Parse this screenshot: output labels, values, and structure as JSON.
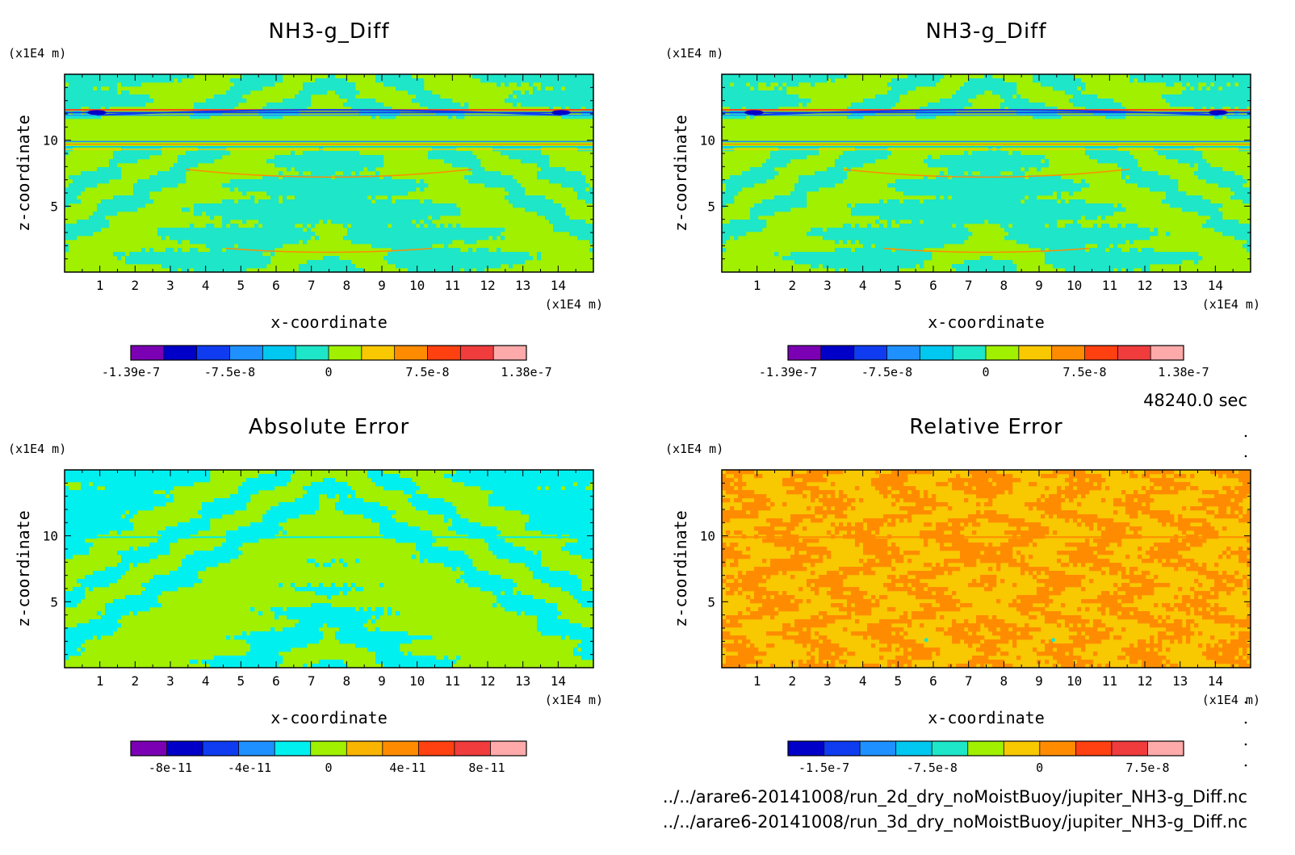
{
  "time_label": "48240.0 sec",
  "file_paths": [
    "../../arare6-20141008/run_2d_dry_noMoistBuoy/jupiter_NH3-g_Diff.nc",
    "../../arare6-20141008/run_3d_dry_noMoistBuoy/jupiter_NH3-g_Diff.nc"
  ],
  "chart_data": [
    {
      "type": "heatmap",
      "title": "NH3-g_Diff",
      "xlabel": "x-coordinate",
      "ylabel": "z-coordinate",
      "x_unit": "(x1E4 m)",
      "y_unit": "(x1E4 m)",
      "xlim": [
        0,
        15
      ],
      "ylim": [
        0,
        15
      ],
      "x_ticks": [
        "1",
        "2",
        "3",
        "4",
        "5",
        "6",
        "7",
        "8",
        "9",
        "10",
        "11",
        "12",
        "13",
        "14"
      ],
      "y_ticks": [
        "5",
        "10"
      ],
      "colors": [
        "#7b00b4",
        "#0000c8",
        "#0f3cf0",
        "#1e90ff",
        "#00c8f0",
        "#1ee6c8",
        "#a0f000",
        "#f8c800",
        "#ff8c00",
        "#ff4010",
        "#f03c3c",
        "#ffaaaa"
      ],
      "colorbar_labels": [
        "-1.39e-7",
        "-7.5e-8",
        "0",
        "7.5e-8",
        "1.38e-7"
      ],
      "colorbar_positions": [
        0,
        0.25,
        0.5,
        0.75,
        1.0
      ],
      "dominant_colors": [
        "#a0f000",
        "#1ee6c8"
      ],
      "panel_style": "diff"
    },
    {
      "type": "heatmap",
      "title": "NH3-g_Diff",
      "xlabel": "x-coordinate",
      "ylabel": "z-coordinate",
      "x_unit": "(x1E4 m)",
      "y_unit": "(x1E4 m)",
      "xlim": [
        0,
        15
      ],
      "ylim": [
        0,
        15
      ],
      "x_ticks": [
        "1",
        "2",
        "3",
        "4",
        "5",
        "6",
        "7",
        "8",
        "9",
        "10",
        "11",
        "12",
        "13",
        "14"
      ],
      "y_ticks": [
        "5",
        "10"
      ],
      "colors": [
        "#7b00b4",
        "#0000c8",
        "#0f3cf0",
        "#1e90ff",
        "#00c8f0",
        "#1ee6c8",
        "#a0f000",
        "#f8c800",
        "#ff8c00",
        "#ff4010",
        "#f03c3c",
        "#ffaaaa"
      ],
      "colorbar_labels": [
        "-1.39e-7",
        "-7.5e-8",
        "0",
        "7.5e-8",
        "1.38e-7"
      ],
      "colorbar_positions": [
        0,
        0.25,
        0.5,
        0.75,
        1.0
      ],
      "dominant_colors": [
        "#a0f000",
        "#1ee6c8"
      ],
      "panel_style": "diff"
    },
    {
      "type": "heatmap",
      "title": "Absolute Error",
      "xlabel": "x-coordinate",
      "ylabel": "z-coordinate",
      "x_unit": "(x1E4 m)",
      "y_unit": "(x1E4 m)",
      "xlim": [
        0,
        15
      ],
      "ylim": [
        0,
        15
      ],
      "x_ticks": [
        "1",
        "2",
        "3",
        "4",
        "5",
        "6",
        "7",
        "8",
        "9",
        "10",
        "11",
        "12",
        "13",
        "14"
      ],
      "y_ticks": [
        "5",
        "10"
      ],
      "colors": [
        "#7b00b4",
        "#0000c8",
        "#0f3cf0",
        "#1e90ff",
        "#00f0f0",
        "#a0f000",
        "#f8b400",
        "#ff8c00",
        "#ff4010",
        "#f03c3c",
        "#ffaaaa"
      ],
      "colorbar_labels": [
        "-8e-11",
        "-4e-11",
        "0",
        "4e-11",
        "8e-11"
      ],
      "colorbar_positions": [
        0.1,
        0.3,
        0.5,
        0.7,
        0.9
      ],
      "dominant_colors": [
        "#a0f000",
        "#00f0f0"
      ],
      "panel_style": "abs"
    },
    {
      "type": "heatmap",
      "title": "Relative Error",
      "xlabel": "x-coordinate",
      "ylabel": "z-coordinate",
      "x_unit": "(x1E4 m)",
      "y_unit": "(x1E4 m)",
      "xlim": [
        0,
        15
      ],
      "ylim": [
        0,
        15
      ],
      "x_ticks": [
        "1",
        "2",
        "3",
        "4",
        "5",
        "6",
        "7",
        "8",
        "9",
        "10",
        "11",
        "12",
        "13",
        "14"
      ],
      "y_ticks": [
        "5",
        "10"
      ],
      "colors": [
        "#0000c8",
        "#0f3cf0",
        "#1e90ff",
        "#00c8f0",
        "#1ee6c8",
        "#a0f000",
        "#f8c800",
        "#ff8c00",
        "#ff4010",
        "#f03c3c",
        "#ffaaaa"
      ],
      "colorbar_labels": [
        "-1.5e-7",
        "-7.5e-8",
        "0",
        "7.5e-8"
      ],
      "colorbar_positions": [
        0.091,
        0.364,
        0.636,
        0.909
      ],
      "dominant_colors": [
        "#f8c800",
        "#ff8c00"
      ],
      "panel_style": "rel"
    }
  ]
}
